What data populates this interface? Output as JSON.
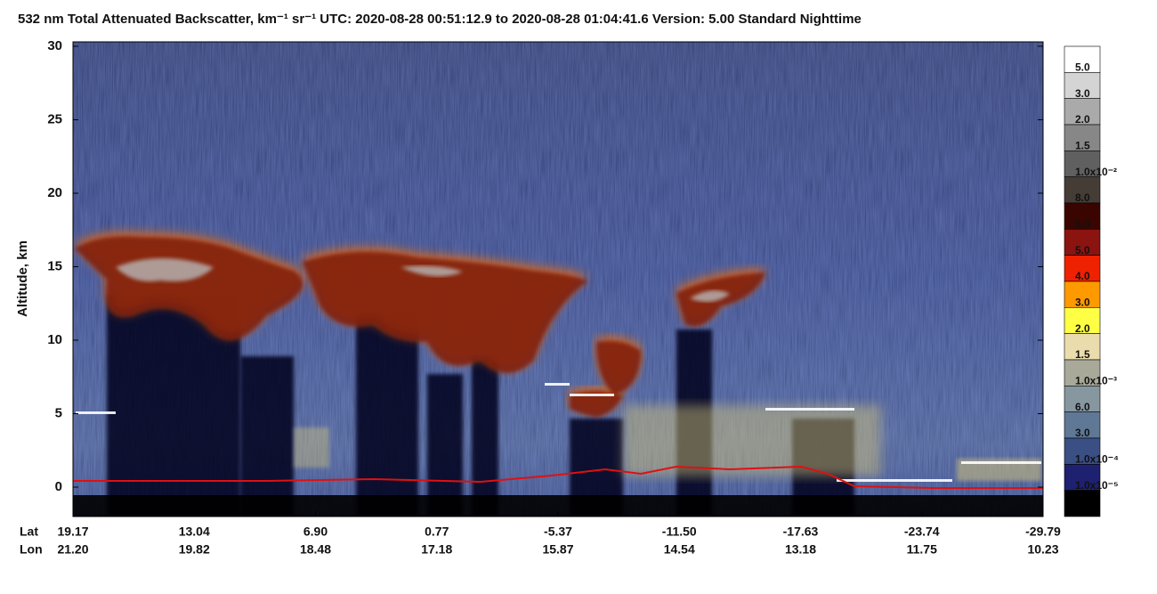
{
  "chart_data": {
    "type": "curtain",
    "title": "532 nm Total Attenuated Backscatter, km⁻¹ sr⁻¹    UTC:  2020-08-28 00:51:12.9  to  2020-08-28 01:04:41.6    Version: 5.00  Standard  Nighttime",
    "y_label": "Altitude, km",
    "ylim": [
      -2,
      30.3
    ],
    "yticks": [
      0,
      5,
      10,
      15,
      20,
      25,
      30
    ],
    "x_row_labels": [
      "Lat",
      "Lon"
    ],
    "lat": [
      "19.17",
      "13.04",
      "6.90",
      "0.77",
      "-5.37",
      "-11.50",
      "-17.63",
      "-23.74",
      "-29.79"
    ],
    "lon": [
      "21.20",
      "19.82",
      "18.48",
      "17.18",
      "15.87",
      "14.54",
      "13.18",
      "11.75",
      "10.23"
    ],
    "colorbar": {
      "colors": [
        "#ffffff",
        "#d4d4d4",
        "#aaaaaa",
        "#878787",
        "#606060",
        "#463c36",
        "#3a0500",
        "#8b1410",
        "#ee2200",
        "#ff9900",
        "#ffff44",
        "#eadcac",
        "#a9a99a",
        "#8797a0",
        "#5f7896",
        "#3a4f84",
        "#1e2070",
        "#000000"
      ],
      "labels": [
        "5.0",
        "3.0",
        "2.0",
        "1.5",
        "1.0x10⁻²",
        "8.0",
        "6.0",
        "5.0",
        "4.0",
        "3.0",
        "2.0",
        "1.5",
        "1.0x10⁻³",
        "6.0",
        "3.0",
        "1.0x10⁻⁴",
        "1.0x10⁻⁵"
      ]
    }
  }
}
